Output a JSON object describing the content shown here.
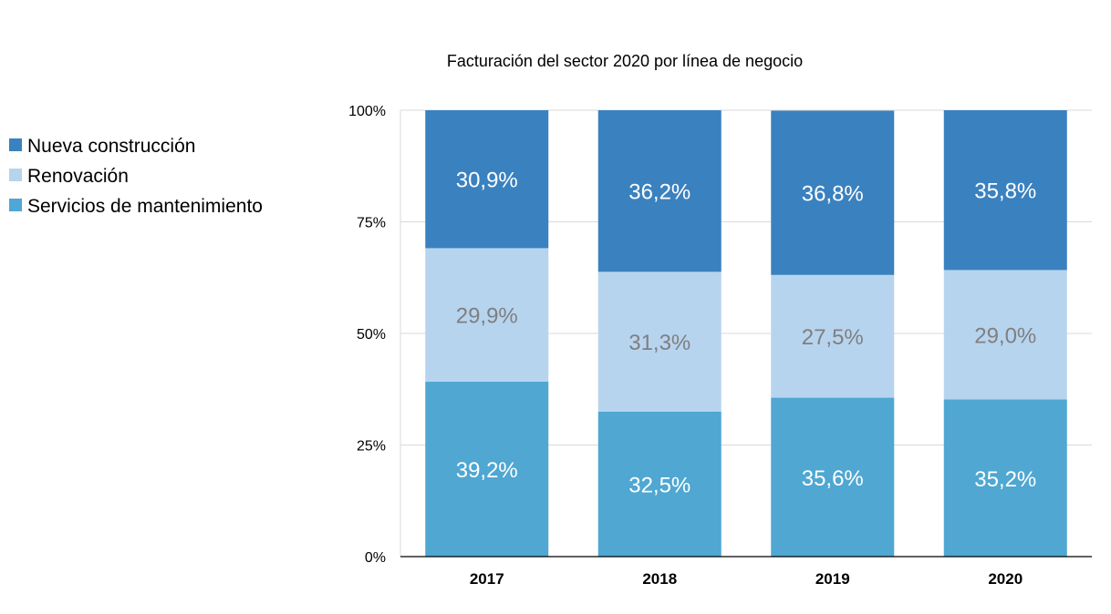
{
  "chart_data": {
    "type": "bar",
    "stacked": true,
    "percent": true,
    "title": "Facturación del sector 2020 por línea de negocio",
    "xlabel": "",
    "ylabel": "",
    "categories": [
      "2017",
      "2018",
      "2019",
      "2020"
    ],
    "ylim": [
      0,
      100
    ],
    "yticks": [
      0,
      25,
      50,
      75,
      100
    ],
    "ytick_labels": [
      "0%",
      "25%",
      "50%",
      "75%",
      "100%"
    ],
    "legend_position": "left",
    "grid": true,
    "series": [
      {
        "name": "Servicios de mantenimiento",
        "color": "#4fa7d2",
        "label_color": "#ffffff",
        "values": [
          39.2,
          32.5,
          35.6,
          35.2
        ],
        "labels": [
          "39,2%",
          "32,5%",
          "35,6%",
          "35,2%"
        ]
      },
      {
        "name": "Renovación",
        "color": "#b7d4ef",
        "label_color": "#7f7f7f",
        "values": [
          29.9,
          31.3,
          27.5,
          29.0
        ],
        "labels": [
          "29,9%",
          "31,3%",
          "27,5%",
          "29,0%"
        ]
      },
      {
        "name": "Nueva construcción",
        "color": "#3a81bf",
        "label_color": "#ffffff",
        "values": [
          30.9,
          36.2,
          36.8,
          35.8
        ],
        "labels": [
          "30,9%",
          "36,2%",
          "36,8%",
          "35,8%"
        ]
      }
    ],
    "legend_order": [
      "Nueva construcción",
      "Renovación",
      "Servicios de mantenimiento"
    ]
  }
}
